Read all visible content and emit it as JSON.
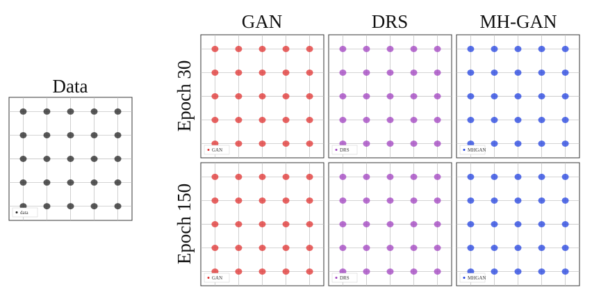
{
  "figure": {
    "columns": [
      "GAN",
      "DRS",
      "MH-GAN"
    ],
    "rows": [
      "Epoch 30",
      "Epoch 150"
    ]
  },
  "chart_data": [
    {
      "type": "scatter",
      "title": "Data",
      "legend": "data",
      "color": "#222222",
      "xlim": [
        -2.6,
        2.6
      ],
      "ylim": [
        -2.6,
        2.6
      ],
      "xticks": [
        -2,
        -1,
        0,
        1,
        2
      ],
      "yticks": [
        -2,
        -1,
        0,
        1,
        2
      ],
      "grid": true,
      "x": [
        -2,
        -1,
        0,
        1,
        2,
        -2,
        -1,
        0,
        1,
        2,
        -2,
        -1,
        0,
        1,
        2,
        -2,
        -1,
        0,
        1,
        2,
        -2,
        -1,
        0,
        1,
        2
      ],
      "y": [
        -2,
        -2,
        -2,
        -2,
        -2,
        -1,
        -1,
        -1,
        -1,
        -1,
        0,
        0,
        0,
        0,
        0,
        1,
        1,
        1,
        1,
        1,
        2,
        2,
        2,
        2,
        2
      ]
    },
    {
      "type": "scatter",
      "legend": "GAN",
      "color": "#e0302f",
      "xlim": [
        -2.6,
        2.6
      ],
      "ylim": [
        -2.6,
        2.6
      ],
      "xticks": [
        -2,
        -1,
        0,
        1,
        2
      ],
      "yticks": [
        -2,
        -1,
        0,
        1,
        2
      ],
      "grid": true,
      "x": [
        -2,
        -1,
        0,
        1,
        2,
        -2,
        -1,
        0,
        1,
        2,
        -2,
        -1,
        0,
        1,
        2,
        -2,
        -1,
        0,
        1,
        2,
        -2,
        -1,
        0,
        1,
        2
      ],
      "y": [
        -2,
        -2,
        -2,
        -2,
        -2,
        -1,
        -1,
        -1,
        -1,
        -1,
        0,
        0,
        0,
        0,
        0,
        1,
        1,
        1,
        1,
        1,
        2,
        2,
        2,
        2,
        2
      ]
    },
    {
      "type": "scatter",
      "legend": "DRS",
      "color": "#a040c0",
      "xlim": [
        -2.6,
        2.6
      ],
      "ylim": [
        -2.6,
        2.6
      ],
      "xticks": [
        -2,
        -1,
        0,
        1,
        2
      ],
      "yticks": [
        -2,
        -1,
        0,
        1,
        2
      ],
      "grid": true,
      "x": [
        -2,
        -1,
        0,
        1,
        2,
        -2,
        -1,
        0,
        1,
        2,
        -2,
        -1,
        0,
        1,
        2,
        -2,
        -1,
        0,
        1,
        2,
        -2,
        -1,
        0,
        1,
        2
      ],
      "y": [
        -2,
        -2,
        -2,
        -2,
        -2,
        -1,
        -1,
        -1,
        -1,
        -1,
        0,
        0,
        0,
        0,
        0,
        1,
        1,
        1,
        1,
        1,
        2,
        2,
        2,
        2,
        2
      ]
    },
    {
      "type": "scatter",
      "legend": "MHGAN",
      "color": "#2040e0",
      "xlim": [
        -2.6,
        2.6
      ],
      "ylim": [
        -2.6,
        2.6
      ],
      "xticks": [
        -2,
        -1,
        0,
        1,
        2
      ],
      "yticks": [
        -2,
        -1,
        0,
        1,
        2
      ],
      "grid": true,
      "x": [
        -2,
        -1,
        0,
        1,
        2,
        -2,
        -1,
        0,
        1,
        2,
        -2,
        -1,
        0,
        1,
        2,
        -2,
        -1,
        0,
        1,
        2,
        -2,
        -1,
        0,
        1,
        2
      ],
      "y": [
        -2,
        -2,
        -2,
        -2,
        -2,
        -1,
        -1,
        -1,
        -1,
        -1,
        0,
        0,
        0,
        0,
        0,
        1,
        1,
        1,
        1,
        1,
        2,
        2,
        2,
        2,
        2
      ]
    },
    {
      "type": "scatter",
      "legend": "GAN",
      "color": "#e0302f",
      "xlim": [
        -2.6,
        2.6
      ],
      "ylim": [
        -2.6,
        2.6
      ],
      "xticks": [
        -2,
        -1,
        0,
        1,
        2
      ],
      "yticks": [
        -2,
        -1,
        0,
        1,
        2
      ],
      "grid": true,
      "x": [
        -2,
        -1,
        0,
        1,
        2,
        -2,
        -1,
        0,
        1,
        2,
        -2,
        -1,
        0,
        1,
        2,
        -2,
        -1,
        0,
        1,
        2,
        -2,
        -1,
        0,
        1,
        2
      ],
      "y": [
        -2,
        -2,
        -2,
        -2,
        -2,
        -1,
        -1,
        -1,
        -1,
        -1,
        0,
        0,
        0,
        0,
        0,
        1,
        1,
        1,
        1,
        1,
        2,
        2,
        2,
        2,
        2
      ]
    },
    {
      "type": "scatter",
      "legend": "DRS",
      "color": "#a040c0",
      "xlim": [
        -2.6,
        2.6
      ],
      "ylim": [
        -2.6,
        2.6
      ],
      "xticks": [
        -2,
        -1,
        0,
        1,
        2
      ],
      "yticks": [
        -2,
        -1,
        0,
        1,
        2
      ],
      "grid": true,
      "x": [
        -2,
        -1,
        0,
        1,
        2,
        -2,
        -1,
        0,
        1,
        2,
        -2,
        -1,
        0,
        1,
        2,
        -2,
        -1,
        0,
        1,
        2,
        -2,
        -1,
        0,
        1,
        2
      ],
      "y": [
        -2,
        -2,
        -2,
        -2,
        -2,
        -1,
        -1,
        -1,
        -1,
        -1,
        0,
        0,
        0,
        0,
        0,
        1,
        1,
        1,
        1,
        1,
        2,
        2,
        2,
        2,
        2
      ]
    },
    {
      "type": "scatter",
      "legend": "MHGAN",
      "color": "#2040e0",
      "xlim": [
        -2.6,
        2.6
      ],
      "ylim": [
        -2.6,
        2.6
      ],
      "xticks": [
        -2,
        -1,
        0,
        1,
        2
      ],
      "yticks": [
        -2,
        -1,
        0,
        1,
        2
      ],
      "grid": true,
      "x": [
        -2,
        -1,
        0,
        1,
        2,
        -2,
        -1,
        0,
        1,
        2,
        -2,
        -1,
        0,
        1,
        2,
        -2,
        -1,
        0,
        1,
        2,
        -2,
        -1,
        0,
        1,
        2
      ],
      "y": [
        -2,
        -2,
        -2,
        -2,
        -2,
        -1,
        -1,
        -1,
        -1,
        -1,
        0,
        0,
        0,
        0,
        0,
        1,
        1,
        1,
        1,
        1,
        2,
        2,
        2,
        2,
        2
      ]
    }
  ]
}
